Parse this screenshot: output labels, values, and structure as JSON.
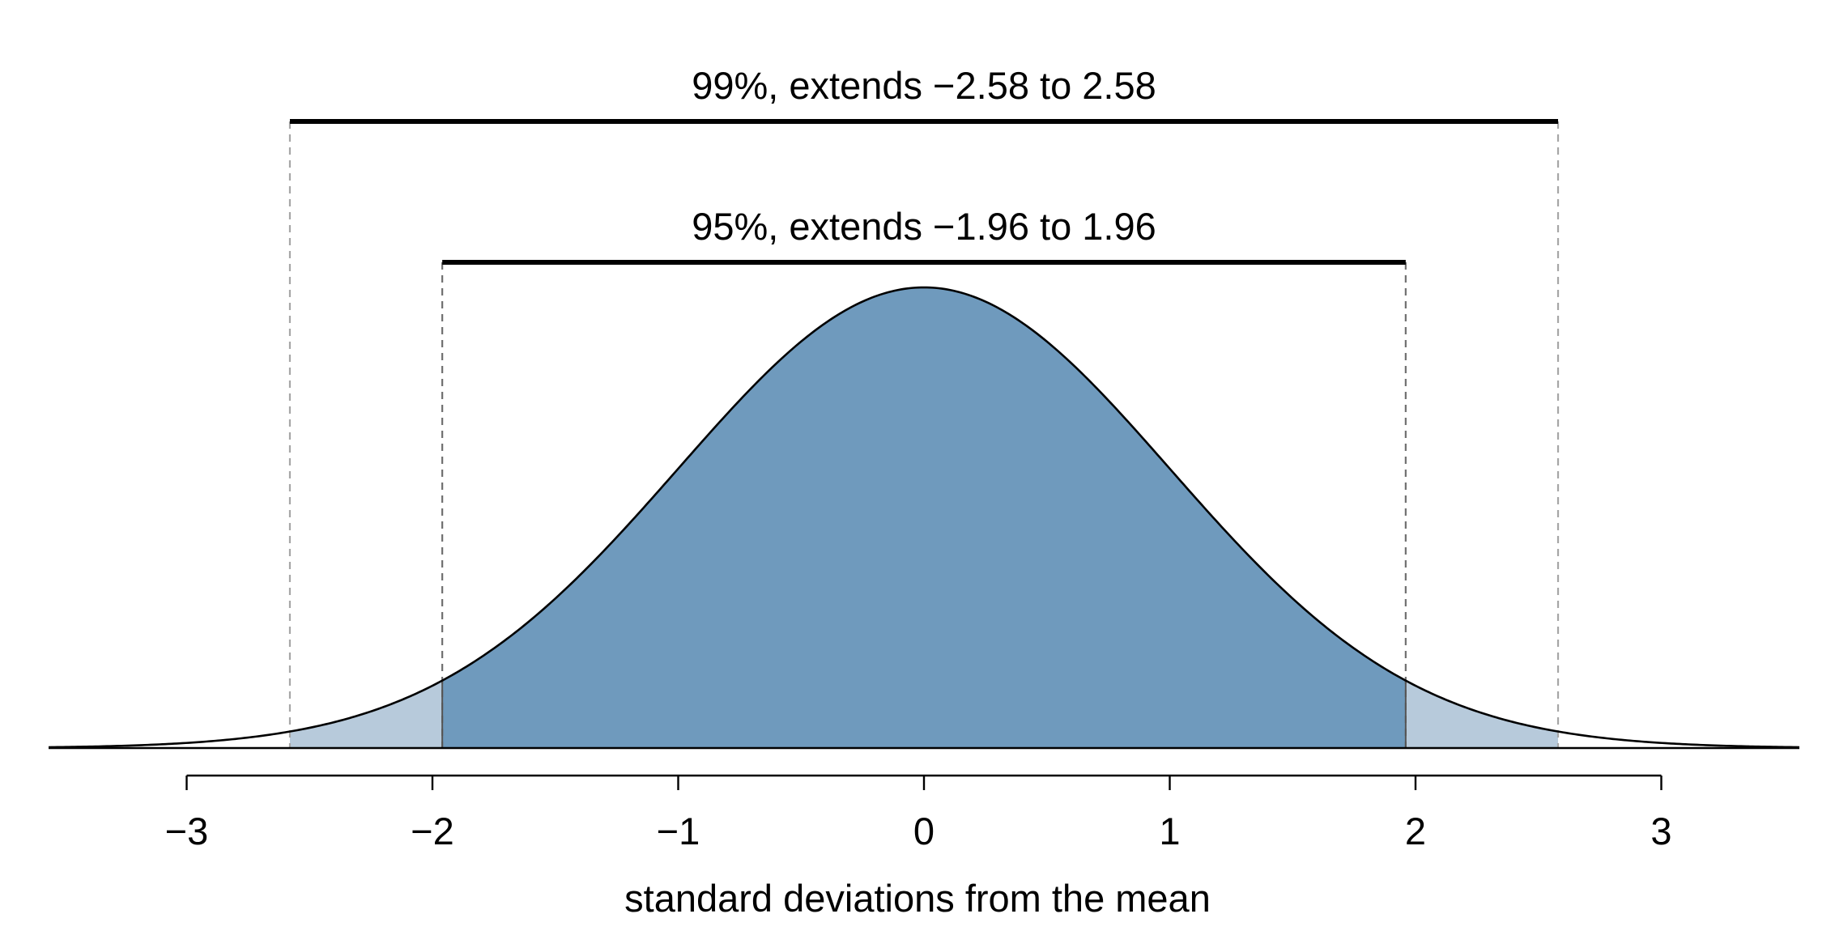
{
  "chart_data": {
    "type": "area",
    "title": "",
    "xlabel": "standard deviations from the mean",
    "ylabel": "",
    "xlim": [
      -3.6,
      3.6
    ],
    "xticks": [
      -3,
      -2,
      -1,
      0,
      1,
      2,
      3
    ],
    "xtick_labels": [
      "−3",
      "−2",
      "−1",
      "0",
      "1",
      "2",
      "3"
    ],
    "grid": false,
    "curve": "standard normal density",
    "mean": 0,
    "sd": 1,
    "shaded_regions": [
      {
        "name": "95% region",
        "from": -1.96,
        "to": 1.96,
        "color": "#6f9abd"
      },
      {
        "name": "99% region",
        "from": -2.58,
        "to": 2.58,
        "color": "#b7cadb"
      }
    ],
    "intervals": [
      {
        "label": "99%, extends −2.58 to 2.58",
        "from": -2.58,
        "to": 2.58,
        "confidence": 99
      },
      {
        "label": "95%, extends −1.96 to 1.96",
        "from": -1.96,
        "to": 1.96,
        "confidence": 95
      }
    ],
    "colors": {
      "inner_fill": "#6f9abd",
      "outer_fill": "#b7cadb",
      "curve": "#000000",
      "guide_99": "#a6a6a6",
      "guide_95": "#707070"
    }
  }
}
